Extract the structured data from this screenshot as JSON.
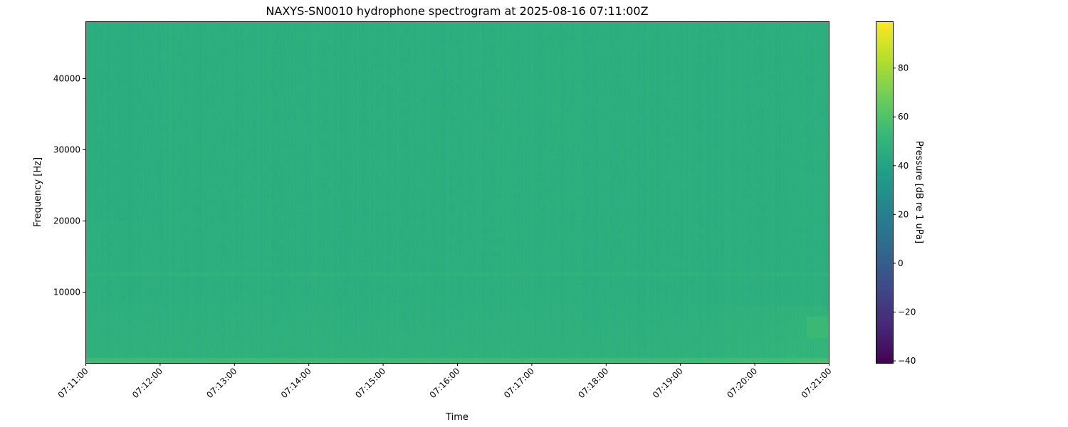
{
  "chart_data": {
    "type": "heatmap",
    "title": "NAXYS-SN0010 hydrophone spectrogram at 2025-08-16 07:11:00Z",
    "xlabel": "Time",
    "ylabel": "Frequency [Hz]",
    "colorbar_label": "Pressure [dB re 1 uPa]",
    "colormap": "viridis",
    "x_range": [
      "07:11:00",
      "07:21:00"
    ],
    "x_ticks": [
      "07:11:00",
      "07:12:00",
      "07:13:00",
      "07:14:00",
      "07:15:00",
      "07:16:00",
      "07:17:00",
      "07:18:00",
      "07:19:00",
      "07:20:00",
      "07:21:00"
    ],
    "ylim": [
      0,
      48000
    ],
    "y_ticks": [
      10000,
      20000,
      30000,
      40000
    ],
    "clim": [
      -41,
      99
    ],
    "colorbar_ticks": [
      -40,
      -20,
      0,
      20,
      40,
      60,
      80
    ],
    "levels": {
      "background_db": 47,
      "low_frequency_band_db": 55,
      "band_near_12500_hz_db": 50,
      "late_low_band_4000_6000_hz_db": 54
    },
    "grid": false
  }
}
